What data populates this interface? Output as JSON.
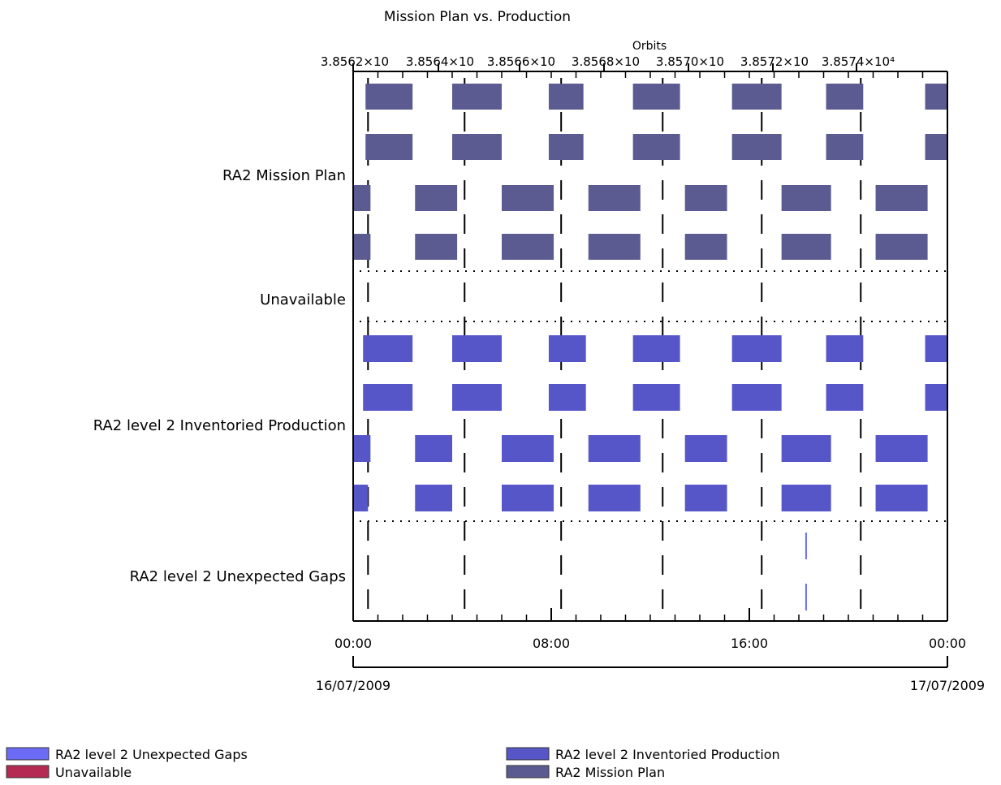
{
  "chart_data": {
    "type": "timeline",
    "title": "Mission Plan vs. Production",
    "top_axis": {
      "label": "Orbits",
      "ticks": [
        {
          "label": "3.8562×10",
          "value": 38562
        },
        {
          "label": "3.8564×10",
          "value": 38564
        },
        {
          "label": "3.8566×10",
          "value": 38566
        },
        {
          "label": "3.8568×10",
          "value": 38568
        },
        {
          "label": "3.8570×10",
          "value": 38570
        },
        {
          "label": "3.8572×10",
          "value": 38572
        },
        {
          "label": "3.8574×10⁴",
          "value": 38574
        }
      ]
    },
    "x_axis": {
      "ticks": [
        {
          "label": "00:00",
          "hour": 0
        },
        {
          "label": "08:00",
          "hour": 8
        },
        {
          "label": "16:00",
          "hour": 16
        },
        {
          "label": "00:00",
          "hour": 24
        }
      ],
      "dates": [
        {
          "label": "16/07/2009",
          "hour": 0
        },
        {
          "label": "17/07/2009",
          "hour": 24
        }
      ]
    },
    "orbit_boundaries_hours": [
      0.6,
      4.5,
      8.4,
      12.5,
      16.5,
      20.5
    ],
    "rows": [
      {
        "label": "RA2 Mission Plan",
        "color": "#5b5b91",
        "lanes": [
          [
            [
              0.5,
              2.4
            ],
            [
              4.0,
              6.0
            ],
            [
              7.9,
              9.3
            ],
            [
              11.3,
              13.2
            ],
            [
              15.3,
              17.3
            ],
            [
              19.1,
              20.6
            ],
            [
              23.1,
              25.1
            ],
            [
              26.4,
              28.5
            ]
          ],
          [
            [
              0.5,
              2.4
            ],
            [
              4.0,
              6.0
            ],
            [
              7.9,
              9.3
            ],
            [
              11.3,
              13.2
            ],
            [
              15.3,
              17.3
            ],
            [
              19.1,
              20.6
            ],
            [
              23.1,
              25.1
            ],
            [
              26.4,
              28.5
            ]
          ],
          [
            [
              0.0,
              0.7
            ],
            [
              2.5,
              4.2
            ],
            [
              6.0,
              8.1
            ],
            [
              9.5,
              11.6
            ],
            [
              13.4,
              15.1
            ],
            [
              17.3,
              19.3
            ],
            [
              21.1,
              23.2
            ],
            [
              25.0,
              26.5
            ],
            [
              28.5,
              28.6
            ]
          ],
          [
            [
              0.0,
              0.7
            ],
            [
              2.5,
              4.2
            ],
            [
              6.0,
              8.1
            ],
            [
              9.5,
              11.6
            ],
            [
              13.4,
              15.1
            ],
            [
              17.3,
              19.3
            ],
            [
              21.1,
              23.2
            ],
            [
              25.0,
              26.5
            ]
          ]
        ]
      },
      {
        "label": "Unavailable",
        "color": "#b42a52",
        "lanes": []
      },
      {
        "label": "RA2 level 2 Inventoried Production",
        "color": "#5656c8",
        "lanes": [
          [
            [
              0.4,
              2.4
            ],
            [
              4.0,
              6.0
            ],
            [
              7.9,
              9.4
            ],
            [
              11.3,
              13.2
            ],
            [
              15.3,
              17.3
            ],
            [
              19.1,
              20.6
            ],
            [
              23.1,
              25.1
            ],
            [
              26.4,
              28.5
            ]
          ],
          [
            [
              0.4,
              2.4
            ],
            [
              4.0,
              6.0
            ],
            [
              7.9,
              9.4
            ],
            [
              11.3,
              13.2
            ],
            [
              15.3,
              17.3
            ],
            [
              19.1,
              20.6
            ],
            [
              23.1,
              25.1
            ],
            [
              26.4,
              28.5
            ]
          ],
          [
            [
              0.0,
              0.7
            ],
            [
              2.5,
              4.0
            ],
            [
              6.0,
              8.1
            ],
            [
              9.5,
              11.6
            ],
            [
              13.4,
              15.1
            ],
            [
              17.3,
              19.3
            ],
            [
              21.1,
              23.2
            ],
            [
              25.0,
              26.5
            ],
            [
              28.5,
              28.6
            ]
          ],
          [
            [
              0.0,
              0.6
            ],
            [
              2.5,
              4.0
            ],
            [
              6.0,
              8.1
            ],
            [
              9.5,
              11.6
            ],
            [
              13.4,
              15.1
            ],
            [
              17.3,
              19.3
            ],
            [
              21.1,
              23.2
            ],
            [
              25.0,
              26.5
            ],
            [
              28.5,
              28.6
            ]
          ]
        ]
      },
      {
        "label": "RA2 level 2 Unexpected Gaps",
        "color": "#6b6bf5",
        "lanes": [
          [
            [
              18.26,
              18.32
            ]
          ],
          [
            [
              18.26,
              18.32
            ]
          ]
        ]
      }
    ],
    "legend": {
      "placement": "bottom",
      "items": [
        {
          "label": "RA2 level 2 Unexpected Gaps",
          "color": "#6b6bf5"
        },
        {
          "label": "Unavailable",
          "color": "#b42a52"
        },
        {
          "label": "RA2 level 2 Inventoried Production",
          "color": "#5656c8"
        },
        {
          "label": "RA2 Mission Plan",
          "color": "#5b5b91"
        }
      ]
    }
  }
}
